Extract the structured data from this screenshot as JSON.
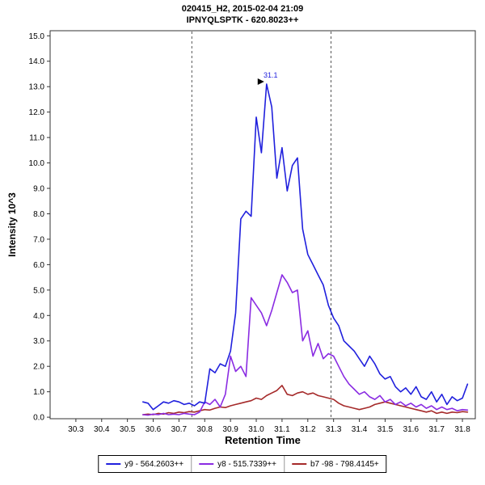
{
  "header": {
    "line1": "020415_H2, 2015-02-04 21:09",
    "line2": "IPNYQLSPTK - 620.8023++"
  },
  "chart_data": {
    "type": "line",
    "title": "020415_H2, 2015-02-04 21:09",
    "subtitle": "IPNYQLSPTK - 620.8023++",
    "xlabel": "Retention Time",
    "ylabel": "Intensity 10^3",
    "xlim": [
      30.2,
      31.85
    ],
    "ylim": [
      -0.06,
      15.2
    ],
    "x_ticks": [
      30.3,
      30.4,
      30.5,
      30.6,
      30.7,
      30.8,
      30.9,
      31.0,
      31.1,
      31.2,
      31.3,
      31.4,
      31.5,
      31.6,
      31.7,
      31.8
    ],
    "y_ticks": [
      0,
      1,
      2,
      3,
      4,
      5,
      6,
      7,
      8,
      9,
      10,
      11,
      12,
      13,
      14,
      15
    ],
    "grid": false,
    "legend_position": "bottom-center",
    "integration_boundaries": [
      30.75,
      31.29
    ],
    "annotation": {
      "label": "31.1",
      "x": 31.04,
      "y": 13.1
    },
    "x": [
      30.56,
      30.58,
      30.6,
      30.62,
      30.64,
      30.66,
      30.68,
      30.7,
      30.72,
      30.74,
      30.76,
      30.78,
      30.8,
      30.82,
      30.84,
      30.86,
      30.88,
      30.9,
      30.92,
      30.94,
      30.96,
      30.98,
      31.0,
      31.02,
      31.04,
      31.06,
      31.08,
      31.1,
      31.12,
      31.14,
      31.16,
      31.18,
      31.2,
      31.22,
      31.24,
      31.26,
      31.28,
      31.3,
      31.32,
      31.34,
      31.36,
      31.38,
      31.4,
      31.42,
      31.44,
      31.46,
      31.48,
      31.5,
      31.52,
      31.54,
      31.56,
      31.58,
      31.6,
      31.62,
      31.64,
      31.66,
      31.68,
      31.7,
      31.72,
      31.74,
      31.76,
      31.78,
      31.8,
      31.82
    ],
    "series": [
      {
        "id": "y9",
        "name": "y9 - 564.2603++",
        "color": "#2020dd",
        "values": [
          0.6,
          0.55,
          0.3,
          0.45,
          0.6,
          0.55,
          0.65,
          0.6,
          0.5,
          0.55,
          0.45,
          0.6,
          0.55,
          1.9,
          1.75,
          2.1,
          2.0,
          2.6,
          4.1,
          7.8,
          8.1,
          7.9,
          11.8,
          10.4,
          13.1,
          12.2,
          9.4,
          10.6,
          8.9,
          9.9,
          10.2,
          7.4,
          6.4,
          6.0,
          5.6,
          5.2,
          4.4,
          3.9,
          3.6,
          3.0,
          2.8,
          2.6,
          2.3,
          2.0,
          2.4,
          2.1,
          1.7,
          1.5,
          1.6,
          1.2,
          1.0,
          1.15,
          0.9,
          1.2,
          0.8,
          0.7,
          1.0,
          0.6,
          0.9,
          0.5,
          0.8,
          0.65,
          0.75,
          1.3
        ]
      },
      {
        "id": "y8",
        "name": "y8 - 515.7339++",
        "color": "#8a2be2",
        "values": [
          0.1,
          0.08,
          0.12,
          0.1,
          0.15,
          0.1,
          0.12,
          0.1,
          0.15,
          0.12,
          0.1,
          0.2,
          0.6,
          0.5,
          0.7,
          0.4,
          0.9,
          2.4,
          1.8,
          2.0,
          1.6,
          4.7,
          4.4,
          4.1,
          3.6,
          4.2,
          4.9,
          5.6,
          5.3,
          4.9,
          5.0,
          3.0,
          3.4,
          2.4,
          2.9,
          2.3,
          2.5,
          2.4,
          2.0,
          1.6,
          1.3,
          1.1,
          0.9,
          1.0,
          0.8,
          0.7,
          0.85,
          0.6,
          0.7,
          0.5,
          0.6,
          0.45,
          0.55,
          0.4,
          0.5,
          0.35,
          0.45,
          0.3,
          0.4,
          0.3,
          0.35,
          0.25,
          0.3,
          0.28
        ]
      },
      {
        "id": "b7",
        "name": "b7 -98 - 798.4145+",
        "color": "#a52a2a",
        "values": [
          0.1,
          0.12,
          0.1,
          0.15,
          0.12,
          0.18,
          0.15,
          0.2,
          0.18,
          0.22,
          0.2,
          0.25,
          0.3,
          0.28,
          0.35,
          0.4,
          0.38,
          0.45,
          0.5,
          0.55,
          0.6,
          0.65,
          0.75,
          0.7,
          0.85,
          0.95,
          1.05,
          1.25,
          0.9,
          0.85,
          0.95,
          1.0,
          0.9,
          0.95,
          0.85,
          0.8,
          0.75,
          0.7,
          0.55,
          0.45,
          0.4,
          0.35,
          0.3,
          0.35,
          0.4,
          0.5,
          0.55,
          0.6,
          0.55,
          0.5,
          0.45,
          0.4,
          0.35,
          0.3,
          0.25,
          0.2,
          0.25,
          0.15,
          0.2,
          0.15,
          0.2,
          0.18,
          0.22,
          0.2
        ]
      }
    ]
  }
}
